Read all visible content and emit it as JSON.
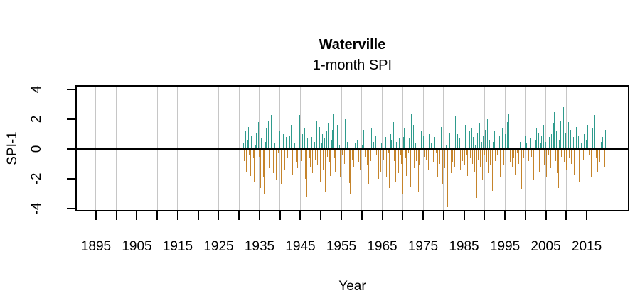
{
  "title": "Waterville",
  "subtitle": "1-month SPI",
  "chart_data": {
    "type": "bar",
    "title": "Waterville",
    "subtitle": "1-month SPI",
    "xlabel": "Year",
    "ylabel": "SPI-1",
    "xlim": [
      1889.96,
      2025.43
    ],
    "ylim": [
      -4.19,
      4.29
    ],
    "x_ticks": [
      1895,
      1900,
      1905,
      1910,
      1915,
      1920,
      1925,
      1930,
      1935,
      1940,
      1945,
      1950,
      1955,
      1960,
      1965,
      1970,
      1975,
      1980,
      1985,
      1990,
      1995,
      2000,
      2005,
      2010,
      2015
    ],
    "x_tick_labels": [
      1895,
      1905,
      1915,
      1925,
      1935,
      1945,
      1955,
      1965,
      1975,
      1985,
      1995,
      2005,
      2015
    ],
    "y_ticks": [
      -4,
      -2,
      0,
      2,
      4
    ],
    "grid": "vertical-lines-every-5-years",
    "legend": "none",
    "zero_line": 0,
    "colors": {
      "positive": "#2F9B8D",
      "negative": "#C5842B",
      "gridline": "#C6C6C6",
      "axis": "#000000"
    },
    "series": [
      {
        "name": "SPI-1",
        "x_start": 1931.0,
        "x_end": 2019.6,
        "values": [
          0.4,
          -0.8,
          1.2,
          -1.5,
          0.6,
          1.5,
          -0.4,
          -1.8,
          0.9,
          1.7,
          -0.6,
          -2.2,
          0.3,
          1.1,
          -1.2,
          1.8,
          -0.5,
          -2.6,
          0.7,
          1.3,
          -1.9,
          -3.0,
          0.5,
          1.4,
          -0.7,
          1.9,
          -1.3,
          0.8,
          2.3,
          -0.9,
          -1.6,
          1.1,
          0.4,
          -2.1,
          1.6,
          -0.3,
          -1.1,
          1.2,
          -2.4,
          0.6,
          1.0,
          -3.7,
          -1.4,
          0.8,
          1.5,
          -0.6,
          -1.0,
          0.9,
          1.6,
          -0.5,
          -1.7,
          1.2,
          0.4,
          -0.9,
          1.8,
          -1.3,
          0.6,
          2.3,
          -0.8,
          -1.5,
          1.0,
          -0.4,
          1.4,
          -2.0,
          -3.2,
          0.7,
          1.1,
          -0.6,
          -1.2,
          0.8,
          -1.6,
          1.3,
          0.5,
          -0.7,
          1.9,
          -1.1,
          -0.3,
          1.5,
          -2.2,
          0.4,
          1.0,
          -1.4,
          0.7,
          -2.9,
          1.2,
          -0.5,
          1.7,
          -0.9,
          -1.8,
          0.6,
          1.3,
          2.4,
          -0.6,
          -1.5,
          0.9,
          1.6,
          -0.8,
          0.3,
          -1.9,
          1.1,
          -0.4,
          1.4,
          -1.0,
          2.0,
          -1.6,
          0.5,
          1.2,
          -2.3,
          -3.0,
          0.8,
          -0.7,
          1.5,
          -1.2,
          0.4,
          -2.1,
          0.6,
          1.8,
          -0.9,
          -1.4,
          1.0,
          0.3,
          -1.7,
          1.3,
          -0.5,
          2.1,
          -1.1,
          0.7,
          -2.4,
          2.5,
          -0.8,
          1.4,
          -1.8,
          0.5,
          -1.3,
          0.9,
          -0.4,
          1.6,
          -2.0,
          0.9,
          -1.5,
          0.4,
          1.2,
          -0.7,
          -3.5,
          0.8,
          -1.9,
          1.5,
          -0.3,
          -2.6,
          1.0,
          0.6,
          -1.2,
          1.8,
          -0.8,
          -2.2,
          0.5,
          1.3,
          -1.6,
          0.7,
          -0.4,
          -1.0,
          -3.0,
          0.8,
          1.4,
          -0.6,
          -1.8,
          1.1,
          -0.3,
          0.7,
          -2.5,
          2.4,
          -0.9,
          1.6,
          -1.3,
          0.4,
          -0.8,
          1.9,
          -2.9,
          -1.1,
          0.5,
          1.2,
          -1.7,
          0.9,
          -0.5,
          1.3,
          -0.7,
          0.6,
          -1.4,
          1.0,
          -2.2,
          0.4,
          1.7,
          -0.9,
          -1.5,
          0.8,
          -0.3,
          1.2,
          -1.9,
          0.5,
          -1.0,
          1.5,
          -0.6,
          -2.4,
          0.9,
          -1.3,
          0.3,
          -0.7,
          -3.9,
          0.6,
          1.1,
          -1.6,
          0.4,
          -0.9,
          1.8,
          -1.2,
          2.2,
          -0.5,
          1.0,
          -2.0,
          0.7,
          -1.4,
          1.3,
          -0.8,
          0.5,
          -1.1,
          1.6,
          -0.4,
          -1.8,
          0.9,
          1.2,
          -0.6,
          1.4,
          -1.0,
          0.8,
          -1.5,
          0.3,
          -3.3,
          1.1,
          -0.7,
          1.7,
          -1.2,
          0.5,
          -2.1,
          0.9,
          -0.4,
          1.3,
          -0.9,
          2.0,
          -1.6,
          0.6,
          -1.1,
          0.8,
          -2.8,
          0.5,
          1.2,
          -0.8,
          1.6,
          -0.4,
          -1.3,
          0.9,
          -1.9,
          0.6,
          1.4,
          -0.7,
          -1.1,
          1.0,
          -0.5,
          1.8,
          -1.5,
          2.4,
          -0.9,
          0.4,
          -1.2,
          1.1,
          -0.6,
          -1.7,
          0.8,
          -0.3,
          1.3,
          -1.0,
          0.5,
          -1.4,
          -2.7,
          1.2,
          -0.6,
          0.9,
          -1.8,
          0.4,
          1.5,
          -0.8,
          -1.2,
          0.7,
          -0.5,
          1.0,
          -2.1,
          -2.9,
          0.6,
          1.4,
          -0.9,
          1.1,
          -1.5,
          0.4,
          0.9,
          -0.7,
          1.6,
          -1.1,
          0.5,
          -1.9,
          1.3,
          -0.4,
          0.8,
          -1.3,
          1.0,
          -0.6,
          1.7,
          2.5,
          -0.8,
          1.2,
          -1.6,
          -2.6,
          0.6,
          1.9,
          -0.5,
          1.4,
          2.8,
          -0.9,
          1.1,
          -1.4,
          0.7,
          1.8,
          -0.6,
          1.3,
          -1.0,
          2.6,
          0.8,
          -1.7,
          0.5,
          1.5,
          -1.2,
          0.9,
          -2.2,
          -2.8,
          0.4,
          1.2,
          -0.7,
          1.0,
          -1.3,
          0.6,
          -0.8,
          1.6,
          -0.4,
          1.1,
          -1.9,
          0.7,
          1.4,
          -1.1,
          2.3,
          -0.6,
          0.9,
          -1.5,
          1.2,
          -0.9,
          0.5,
          -2.4,
          0.8,
          1.7,
          -1.2,
          1.3
        ]
      }
    ]
  }
}
